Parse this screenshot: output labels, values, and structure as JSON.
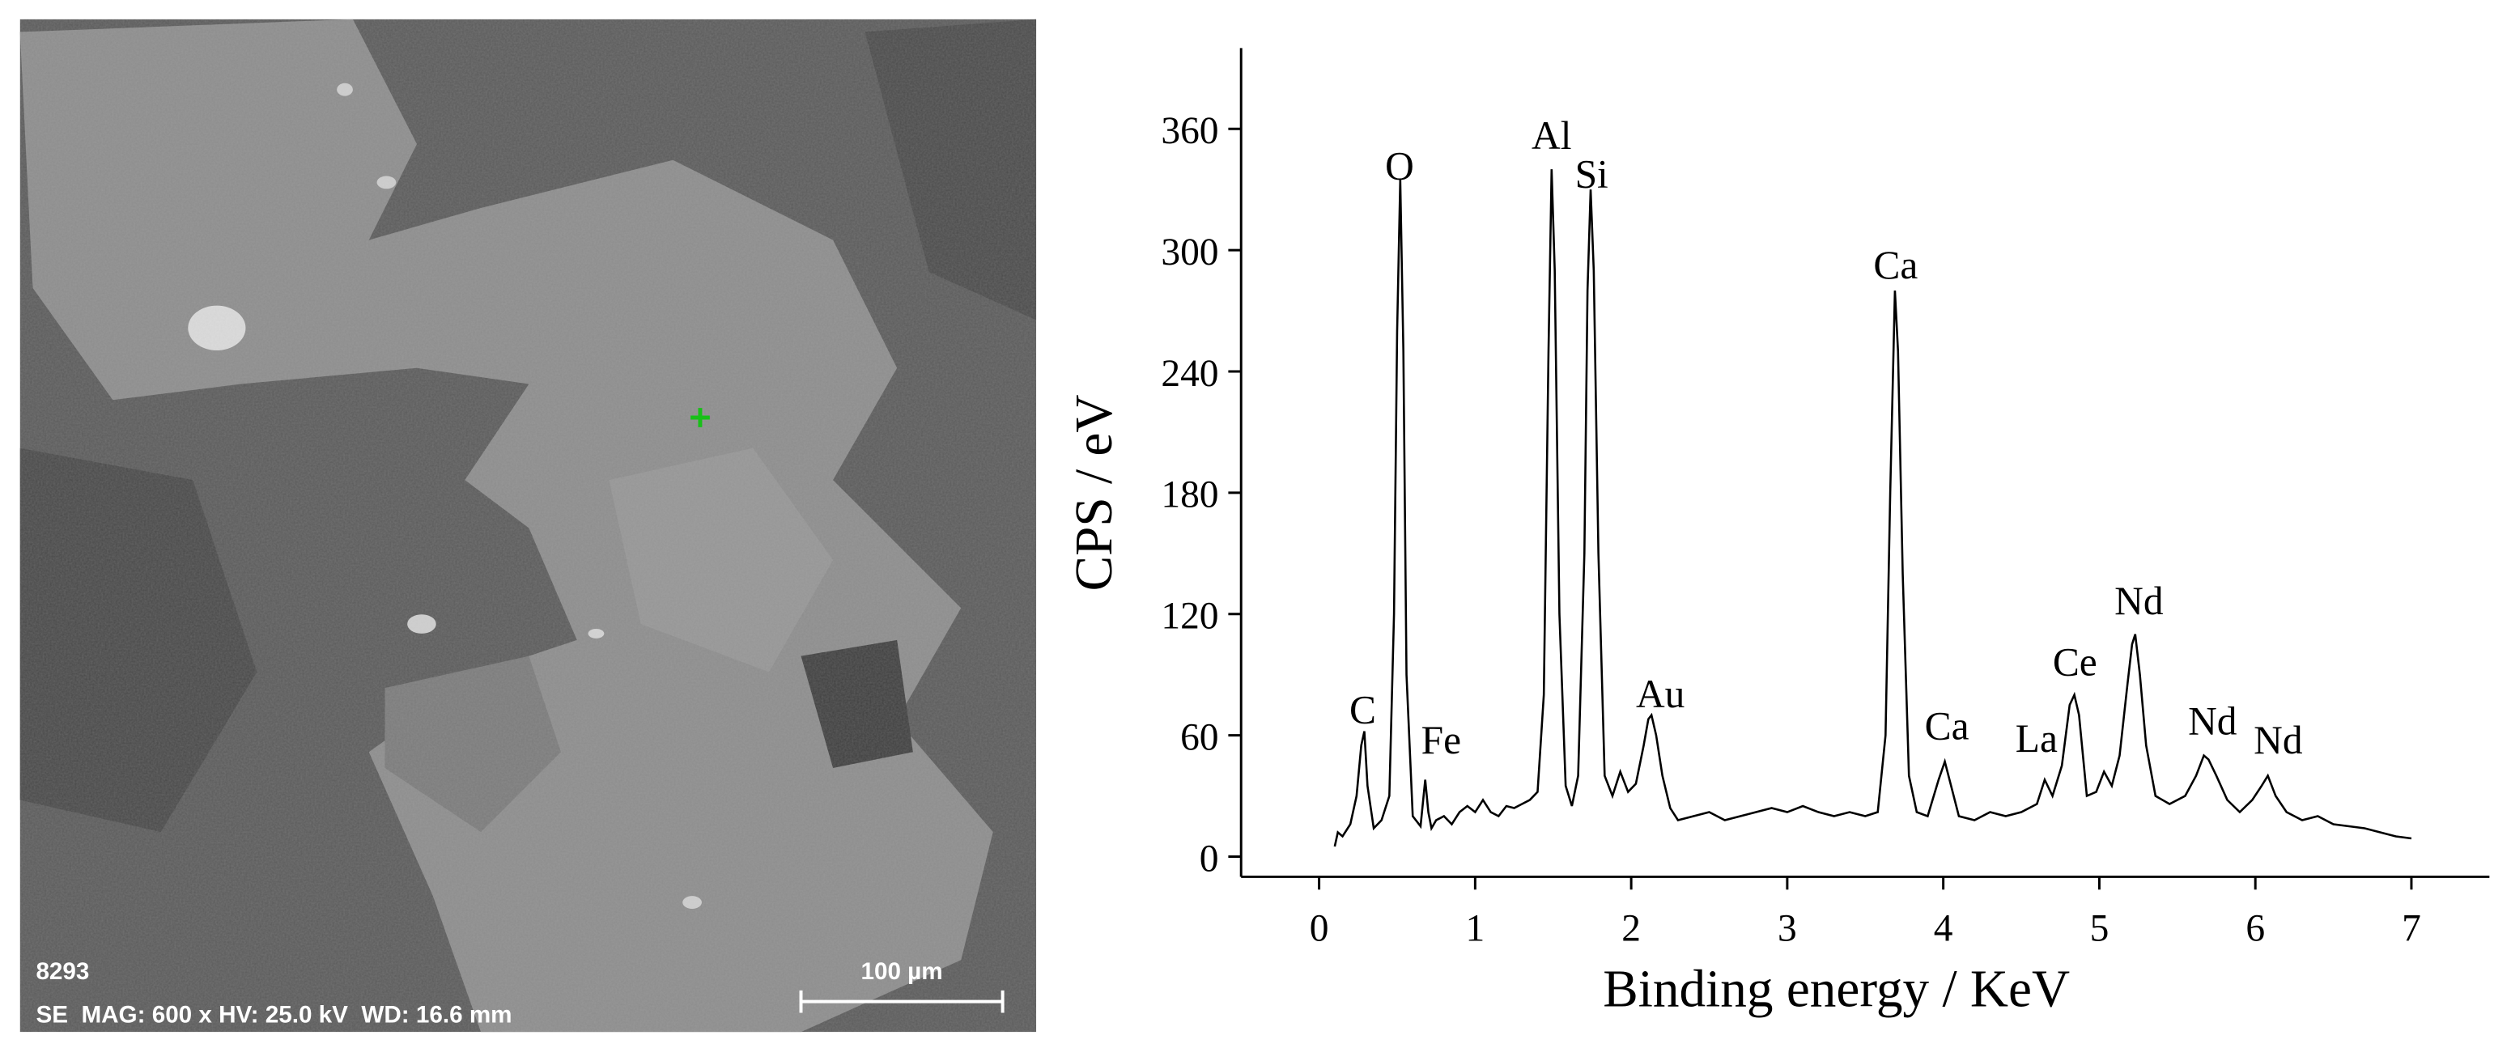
{
  "micrograph": {
    "id": "8293",
    "info": "SE  MAG: 600 x HV: 25.0 kV  WD: 16.6 mm",
    "scale_bar": "100 µm"
  },
  "chart_data": {
    "type": "line",
    "xlabel": "Binding energy / KeV",
    "ylabel": "CPS / eV",
    "xlim": [
      -0.5,
      7.5
    ],
    "ylim": [
      -10,
      400
    ],
    "xticks": [
      0,
      1,
      2,
      3,
      4,
      5,
      6,
      7
    ],
    "yticks": [
      0,
      60,
      120,
      180,
      240,
      300,
      360
    ],
    "color": "#000000",
    "annotations": [
      "C",
      "O",
      "Fe",
      "Al",
      "Si",
      "Au",
      "Ca",
      "Ca",
      "La",
      "Ce",
      "Nd",
      "Nd",
      "Nd"
    ],
    "x": [
      0.1,
      0.12,
      0.15,
      0.2,
      0.24,
      0.27,
      0.29,
      0.31,
      0.35,
      0.4,
      0.45,
      0.48,
      0.5,
      0.52,
      0.54,
      0.56,
      0.6,
      0.65,
      0.68,
      0.7,
      0.72,
      0.75,
      0.8,
      0.85,
      0.9,
      0.95,
      1.0,
      1.05,
      1.1,
      1.15,
      1.2,
      1.25,
      1.3,
      1.35,
      1.4,
      1.44,
      1.47,
      1.49,
      1.51,
      1.54,
      1.58,
      1.62,
      1.66,
      1.7,
      1.72,
      1.74,
      1.76,
      1.79,
      1.83,
      1.88,
      1.93,
      1.98,
      2.03,
      2.08,
      2.11,
      2.13,
      2.16,
      2.2,
      2.25,
      2.3,
      2.4,
      2.5,
      2.6,
      2.7,
      2.8,
      2.9,
      3.0,
      3.1,
      3.2,
      3.3,
      3.4,
      3.5,
      3.58,
      3.63,
      3.66,
      3.69,
      3.71,
      3.74,
      3.78,
      3.83,
      3.9,
      3.97,
      4.01,
      4.05,
      4.1,
      4.2,
      4.3,
      4.4,
      4.5,
      4.6,
      4.65,
      4.7,
      4.76,
      4.81,
      4.84,
      4.87,
      4.92,
      4.98,
      5.03,
      5.08,
      5.13,
      5.18,
      5.21,
      5.23,
      5.26,
      5.3,
      5.36,
      5.45,
      5.55,
      5.62,
      5.67,
      5.7,
      5.75,
      5.82,
      5.9,
      5.98,
      6.04,
      6.08,
      6.13,
      6.2,
      6.3,
      6.4,
      6.5,
      6.6,
      6.7,
      6.8,
      6.9,
      7.0
    ],
    "values": [
      5,
      12,
      10,
      16,
      30,
      55,
      62,
      35,
      14,
      18,
      30,
      120,
      260,
      335,
      250,
      90,
      20,
      15,
      38,
      22,
      14,
      18,
      20,
      16,
      22,
      25,
      22,
      28,
      22,
      20,
      25,
      24,
      26,
      28,
      32,
      80,
      250,
      340,
      290,
      120,
      35,
      25,
      40,
      150,
      280,
      330,
      290,
      150,
      40,
      30,
      42,
      32,
      36,
      55,
      68,
      70,
      60,
      40,
      24,
      18,
      20,
      22,
      18,
      20,
      22,
      24,
      22,
      25,
      22,
      20,
      22,
      20,
      22,
      60,
      180,
      280,
      250,
      140,
      40,
      22,
      20,
      38,
      47,
      35,
      20,
      18,
      22,
      20,
      22,
      26,
      38,
      30,
      45,
      75,
      80,
      70,
      30,
      32,
      42,
      35,
      50,
      85,
      105,
      110,
      90,
      55,
      30,
      26,
      30,
      40,
      50,
      48,
      40,
      28,
      22,
      28,
      35,
      40,
      30,
      22,
      18,
      20,
      16,
      15,
      14,
      12,
      10,
      9
    ]
  }
}
